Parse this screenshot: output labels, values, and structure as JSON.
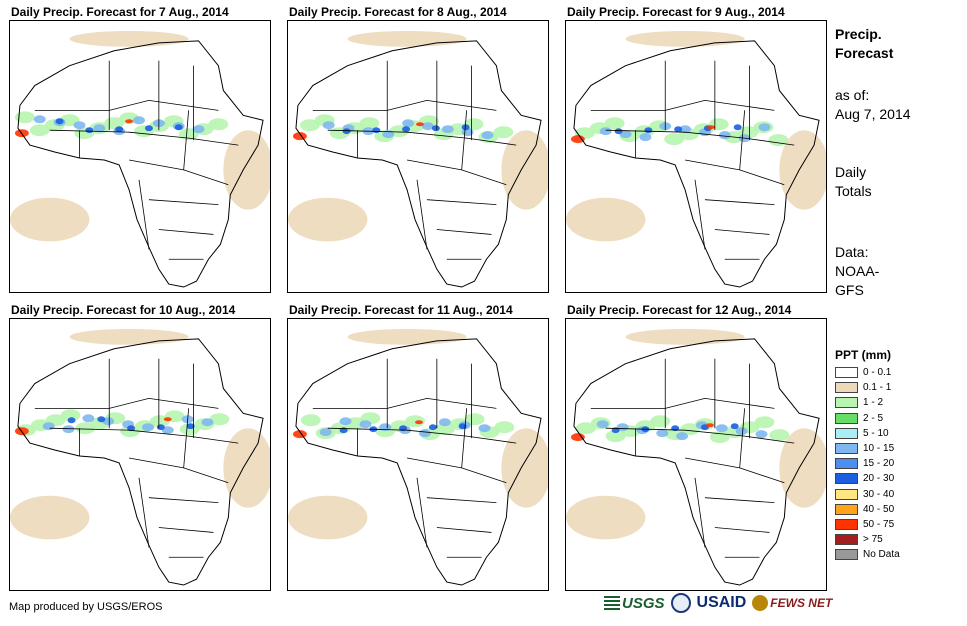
{
  "panels": [
    {
      "title": "Daily Precip. Forecast for 7 Aug., 2014"
    },
    {
      "title": "Daily Precip. Forecast for 8 Aug., 2014"
    },
    {
      "title": "Daily Precip. Forecast for 9 Aug., 2014"
    },
    {
      "title": "Daily Precip. Forecast for 10 Aug., 2014"
    },
    {
      "title": "Daily Precip. Forecast for 11 Aug., 2014"
    },
    {
      "title": "Daily Precip. Forecast for 12 Aug., 2014"
    }
  ],
  "sidebar": {
    "heading_1": "Precip.",
    "heading_2": "Forecast",
    "asof_1": "as of:",
    "asof_2": "Aug 7, 2014",
    "totals_1": "Daily",
    "totals_2": "Totals",
    "data_1": "Data:",
    "data_2": "NOAA-",
    "data_3": "GFS"
  },
  "legend": {
    "title": "PPT (mm)",
    "items": [
      {
        "label": "0 - 0.1",
        "color": "#ffffff"
      },
      {
        "label": "0.1 - 1",
        "color": "#ecd9b9"
      },
      {
        "label": "1 - 2",
        "color": "#b7f5b0"
      },
      {
        "label": "2 - 5",
        "color": "#66dd66"
      },
      {
        "label": "5 - 10",
        "color": "#aaeef5"
      },
      {
        "label": "10 - 15",
        "color": "#7fb8f0"
      },
      {
        "label": "15 - 20",
        "color": "#4d8ff0"
      },
      {
        "label": "20 - 30",
        "color": "#1a5fe0"
      },
      {
        "label": "30 - 40",
        "color": "#ffe680"
      },
      {
        "label": "40 - 50",
        "color": "#ffa31a"
      },
      {
        "label": "50 - 75",
        "color": "#ff3300"
      },
      {
        "label": "> 75",
        "color": "#a31f1f"
      },
      {
        "label": "No Data",
        "color": "#999999"
      }
    ]
  },
  "footer": {
    "credit": "Map produced by USGS/EROS"
  },
  "logos": {
    "usgs": "USGS",
    "usaid": "USAID",
    "fews": "FEWS NET"
  }
}
